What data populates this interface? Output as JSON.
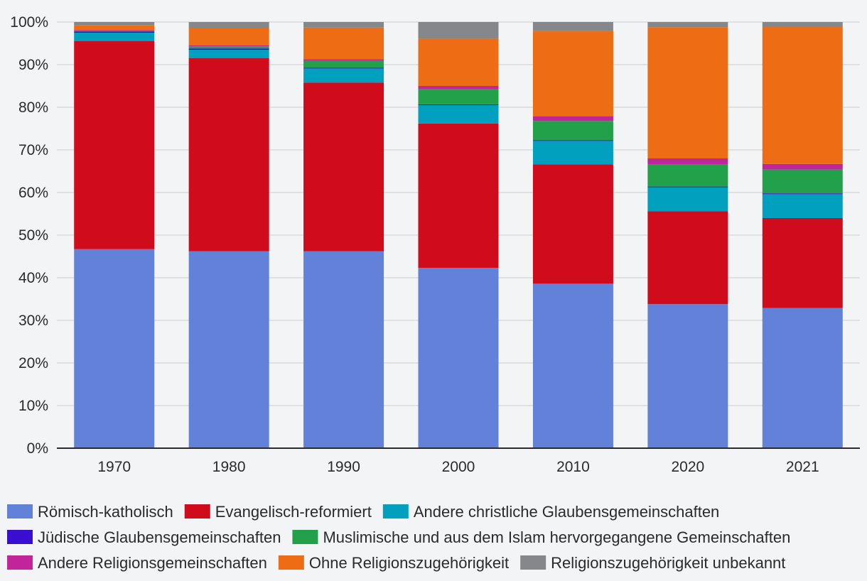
{
  "chart_data": {
    "type": "bar",
    "stacked": true,
    "title": "",
    "xlabel": "",
    "ylabel": "",
    "ylim": [
      0,
      100
    ],
    "y_ticks": [
      0,
      10,
      20,
      30,
      40,
      50,
      60,
      70,
      80,
      90,
      100
    ],
    "y_tick_suffix": "%",
    "grid": true,
    "legend_position": "bottom",
    "categories": [
      "1970",
      "1980",
      "1990",
      "2000",
      "2010",
      "2020",
      "2021"
    ],
    "series": [
      {
        "name": "Römisch-katholisch",
        "color": "#6282d9",
        "values": [
          46.7,
          46.2,
          46.2,
          42.3,
          38.6,
          33.8,
          32.9
        ]
      },
      {
        "name": "Evangelisch-reformiert",
        "color": "#d00b1c",
        "values": [
          48.8,
          45.3,
          39.6,
          33.9,
          28.0,
          21.8,
          21.1
        ]
      },
      {
        "name": "Andere christliche Glaubensgemeinschaften",
        "color": "#00a0be",
        "values": [
          2.0,
          2.0,
          3.3,
          4.3,
          5.5,
          5.6,
          5.6
        ]
      },
      {
        "name": "Jüdische Glaubensgemeinschaften",
        "color": "#3a0ed0",
        "values": [
          0.3,
          0.3,
          0.2,
          0.2,
          0.2,
          0.2,
          0.2
        ]
      },
      {
        "name": "Muslimische und aus dem Islam hervorgegangene Gemeinschaften",
        "color": "#22a04a",
        "values": [
          0.2,
          0.5,
          1.6,
          3.5,
          4.5,
          5.2,
          5.6
        ]
      },
      {
        "name": "Andere Religionsgemeinschaften",
        "color": "#c2259b",
        "values": [
          0.1,
          0.2,
          0.4,
          0.8,
          1.1,
          1.4,
          1.3
        ]
      },
      {
        "name": "Ohne Religionszugehörigkeit",
        "color": "#ee6c13",
        "values": [
          1.2,
          4.0,
          7.4,
          11.1,
          20.0,
          30.8,
          32.3
        ]
      },
      {
        "name": "Religionszugehörigkeit unbekannt",
        "color": "#86878a",
        "values": [
          0.7,
          1.5,
          1.3,
          3.9,
          2.1,
          1.2,
          1.0
        ]
      }
    ]
  }
}
